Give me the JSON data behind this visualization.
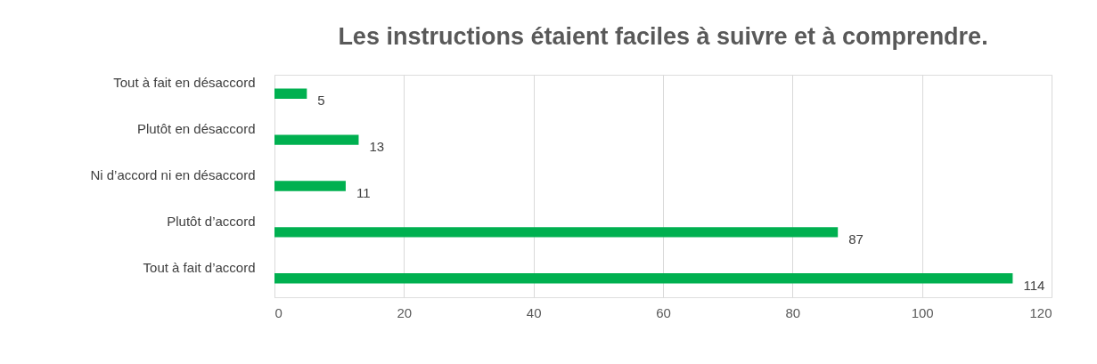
{
  "chart_data": {
    "type": "bar",
    "orientation": "horizontal",
    "title": "Les instructions étaient faciles à suivre et à comprendre.",
    "categories": [
      "Tout à fait en désaccord",
      "Plutôt en désaccord",
      "Ni d’accord ni en désaccord",
      "Plutôt d’accord",
      "Tout à fait d’accord"
    ],
    "values": [
      5,
      13,
      11,
      87,
      114
    ],
    "color": "#00b050",
    "xlim": [
      0,
      120
    ],
    "xticks": [
      0,
      20,
      40,
      60,
      80,
      100,
      120
    ],
    "grid": "x",
    "data_labels": true
  }
}
